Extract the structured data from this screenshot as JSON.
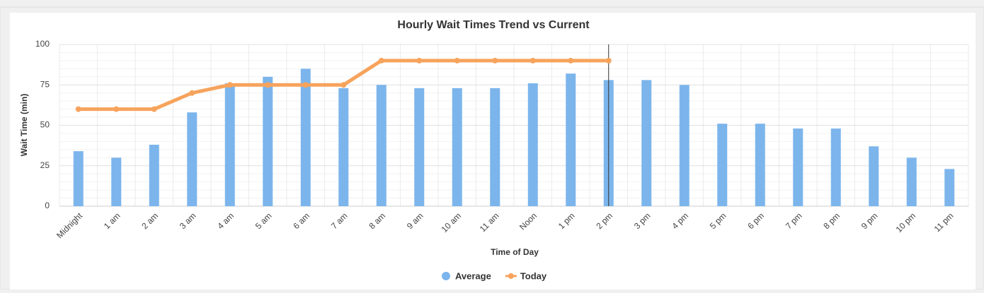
{
  "chart_data": {
    "type": "bar-line",
    "title": "Hourly Wait Times Trend vs Current",
    "x_label": "Time of Day",
    "y_label": "Wait Time (min)",
    "categories": [
      "Midnight",
      "1 am",
      "2 am",
      "3 am",
      "4 am",
      "5 am",
      "6 am",
      "7 am",
      "8 am",
      "9 am",
      "10 am",
      "11 am",
      "Noon",
      "1 pm",
      "2 pm",
      "3 pm",
      "4 pm",
      "5 pm",
      "6 pm",
      "7 pm",
      "8 pm",
      "9 pm",
      "10 pm",
      "11 pm"
    ],
    "series": [
      {
        "name": "Average",
        "type": "bar",
        "color": "#7cb5ec",
        "values": [
          34,
          30,
          38,
          58,
          76,
          80,
          85,
          73,
          75,
          73,
          73,
          73,
          76,
          82,
          78,
          78,
          75,
          51,
          51,
          48,
          48,
          37,
          30,
          23
        ]
      },
      {
        "name": "Today",
        "type": "line",
        "color": "#f7a35c",
        "values": [
          60,
          60,
          60,
          70,
          75,
          75,
          75,
          75,
          90,
          90,
          90,
          90,
          90,
          90,
          90,
          null,
          null,
          null,
          null,
          null,
          null,
          null,
          null,
          null
        ]
      }
    ],
    "ylim": [
      0,
      100
    ],
    "yticks": [
      0,
      25,
      50,
      75,
      100
    ],
    "yminorticks": [
      5,
      10,
      15,
      20,
      30,
      35,
      40,
      45,
      55,
      60,
      65,
      70,
      80,
      85,
      90,
      95
    ],
    "grid": true,
    "legend": "bottom"
  }
}
